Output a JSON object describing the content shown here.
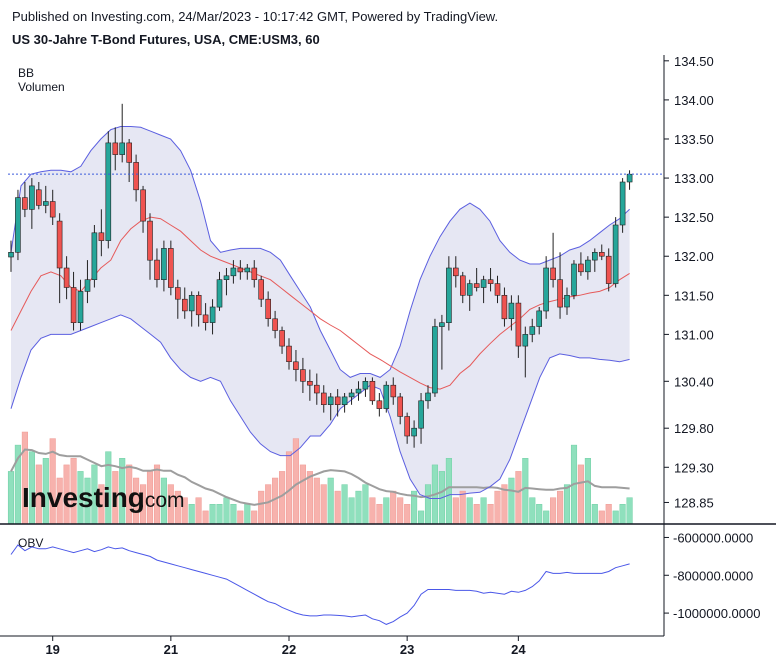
{
  "header": {
    "published": "Published on Investing.com, 24/Mar/2023 - 10:17:42 GMT, Powered by TradingView.",
    "instrument": "US 30-Jahre T-Bond Futures, USA, CME:USM3, 60"
  },
  "legend": {
    "bb": "BB",
    "volume": "Volumen",
    "obv": "OBV"
  },
  "watermark": {
    "brand": "Investing",
    "suffix": ".com"
  },
  "colors": {
    "up": "#26a69a",
    "down": "#ef5350",
    "vol_up": "#8fe0bd",
    "vol_down": "#f7b2ad",
    "bb_band": "#5b5fe0",
    "bb_fill": "#e6e7f3",
    "bb_mid": "#e65a5a",
    "vol_ma": "#9e9e9e",
    "obv": "#4a57e8",
    "last_price": "#3b5bdb"
  },
  "chart_data": [
    {
      "type": "candlestick",
      "title": "US 30-Jahre T-Bond Futures, USA, CME:USM3, 60",
      "price_ticks": [
        "134.50",
        "134.00",
        "133.50",
        "133.00",
        "132.50",
        "132.00",
        "131.50",
        "131.00",
        "130.40",
        "129.80",
        "129.30",
        "128.85"
      ],
      "x_ticks": [
        {
          "label": "19",
          "i": 6
        },
        {
          "label": "21",
          "i": 23
        },
        {
          "label": "22",
          "i": 40
        },
        {
          "label": "23",
          "i": 57
        },
        {
          "label": "24",
          "i": 73
        }
      ],
      "ylim": [
        128.6,
        134.6
      ],
      "last_price": 133.05,
      "ohlc": [
        [
          131.99,
          132.2,
          131.8,
          132.05
        ],
        [
          132.05,
          132.85,
          131.95,
          132.75
        ],
        [
          132.75,
          132.95,
          132.5,
          132.6
        ],
        [
          132.6,
          133.0,
          132.35,
          132.9
        ],
        [
          132.85,
          132.95,
          132.6,
          132.65
        ],
        [
          132.65,
          132.9,
          132.55,
          132.7
        ],
        [
          132.7,
          132.85,
          132.4,
          132.5
        ],
        [
          132.45,
          132.55,
          131.4,
          131.85
        ],
        [
          131.85,
          132.0,
          131.45,
          131.6
        ],
        [
          131.6,
          131.8,
          131.05,
          131.15
        ],
        [
          131.15,
          131.7,
          131.05,
          131.55
        ],
        [
          131.55,
          131.95,
          131.4,
          131.7
        ],
        [
          131.7,
          132.4,
          131.6,
          132.3
        ],
        [
          132.3,
          132.6,
          132.0,
          132.2
        ],
        [
          132.2,
          133.6,
          132.1,
          133.45
        ],
        [
          133.45,
          133.65,
          133.1,
          133.3
        ],
        [
          133.3,
          133.95,
          133.2,
          133.45
        ],
        [
          133.45,
          133.5,
          132.95,
          133.2
        ],
        [
          133.2,
          133.3,
          132.7,
          132.85
        ],
        [
          132.85,
          132.9,
          132.3,
          132.45
        ],
        [
          132.45,
          132.55,
          131.7,
          131.95
        ],
        [
          131.95,
          132.1,
          131.6,
          131.7
        ],
        [
          131.7,
          132.2,
          131.55,
          132.1
        ],
        [
          132.1,
          132.2,
          131.5,
          131.6
        ],
        [
          131.6,
          131.7,
          131.2,
          131.45
        ],
        [
          131.45,
          131.6,
          131.2,
          131.3
        ],
        [
          131.3,
          131.55,
          131.1,
          131.5
        ],
        [
          131.5,
          131.55,
          131.1,
          131.25
        ],
        [
          131.25,
          131.4,
          131.05,
          131.15
        ],
        [
          131.15,
          131.45,
          131.0,
          131.35
        ],
        [
          131.35,
          131.8,
          131.3,
          131.7
        ],
        [
          131.7,
          131.85,
          131.5,
          131.75
        ],
        [
          131.75,
          131.95,
          131.65,
          131.85
        ],
        [
          131.85,
          131.95,
          131.7,
          131.8
        ],
        [
          131.8,
          131.9,
          131.7,
          131.85
        ],
        [
          131.85,
          131.95,
          131.6,
          131.7
        ],
        [
          131.7,
          131.75,
          131.35,
          131.45
        ],
        [
          131.45,
          131.55,
          131.1,
          131.2
        ],
        [
          131.2,
          131.3,
          130.95,
          131.05
        ],
        [
          131.05,
          131.1,
          130.75,
          130.85
        ],
        [
          130.85,
          130.95,
          130.55,
          130.65
        ],
        [
          130.65,
          130.8,
          130.4,
          130.55
        ],
        [
          130.55,
          130.7,
          130.25,
          130.4
        ],
        [
          130.4,
          130.55,
          130.15,
          130.35
        ],
        [
          130.35,
          130.5,
          130.1,
          130.25
        ],
        [
          130.25,
          130.35,
          130.0,
          130.1
        ],
        [
          130.1,
          130.25,
          129.9,
          130.2
        ],
        [
          130.2,
          130.3,
          129.95,
          130.1
        ],
        [
          130.1,
          130.25,
          130.0,
          130.2
        ],
        [
          130.2,
          130.3,
          130.1,
          130.25
        ],
        [
          130.25,
          130.4,
          130.15,
          130.3
        ],
        [
          130.3,
          130.45,
          130.2,
          130.4
        ],
        [
          130.4,
          130.45,
          130.1,
          130.15
        ],
        [
          130.15,
          130.25,
          129.95,
          130.05
        ],
        [
          130.05,
          130.4,
          130.0,
          130.35
        ],
        [
          130.35,
          130.45,
          130.1,
          130.2
        ],
        [
          130.2,
          130.25,
          129.85,
          129.95
        ],
        [
          129.95,
          130.0,
          129.6,
          129.7
        ],
        [
          129.7,
          129.9,
          129.55,
          129.8
        ],
        [
          129.8,
          130.25,
          129.6,
          130.15
        ],
        [
          130.15,
          130.35,
          130.05,
          130.25
        ],
        [
          130.25,
          131.2,
          130.2,
          131.1
        ],
        [
          131.1,
          131.25,
          130.55,
          131.15
        ],
        [
          131.15,
          132.0,
          131.05,
          131.85
        ],
        [
          131.85,
          132.0,
          131.6,
          131.75
        ],
        [
          131.75,
          131.8,
          131.4,
          131.5
        ],
        [
          131.5,
          131.7,
          131.3,
          131.65
        ],
        [
          131.65,
          131.85,
          131.55,
          131.6
        ],
        [
          131.6,
          131.75,
          131.4,
          131.7
        ],
        [
          131.7,
          131.85,
          131.55,
          131.65
        ],
        [
          131.65,
          131.75,
          131.4,
          131.5
        ],
        [
          131.5,
          131.6,
          131.1,
          131.2
        ],
        [
          131.2,
          131.5,
          131.05,
          131.4
        ],
        [
          131.4,
          131.5,
          130.7,
          130.85
        ],
        [
          130.85,
          131.1,
          130.45,
          131.0
        ],
        [
          131.0,
          131.2,
          130.9,
          131.1
        ],
        [
          131.1,
          131.35,
          131.0,
          131.3
        ],
        [
          131.3,
          132.0,
          131.2,
          131.85
        ],
        [
          131.85,
          132.3,
          131.6,
          131.7
        ],
        [
          131.7,
          132.05,
          131.2,
          131.35
        ],
        [
          131.35,
          131.6,
          131.25,
          131.5
        ],
        [
          131.5,
          131.95,
          131.45,
          131.9
        ],
        [
          131.9,
          132.05,
          131.75,
          131.8
        ],
        [
          131.8,
          132.0,
          131.7,
          131.95
        ],
        [
          131.95,
          132.1,
          131.8,
          132.05
        ],
        [
          132.05,
          132.15,
          131.95,
          132.0
        ],
        [
          132.0,
          132.1,
          131.55,
          131.65
        ],
        [
          131.65,
          132.5,
          131.6,
          132.4
        ],
        [
          132.4,
          133.0,
          132.3,
          132.95
        ],
        [
          132.95,
          133.1,
          132.85,
          133.05
        ]
      ],
      "bb_upper": [
        132.05,
        132.9,
        133.05,
        133.08,
        133.1,
        133.1,
        133.08,
        133.15,
        133.35,
        133.5,
        133.62,
        133.66,
        133.66,
        133.65,
        133.6,
        133.55,
        133.5,
        133.35,
        133.1,
        132.7,
        132.2,
        132.05,
        132.08,
        132.1,
        132.1,
        132.1,
        132.05,
        131.95,
        131.75,
        131.55,
        131.35,
        131.05,
        130.8,
        130.55,
        130.45,
        130.5,
        130.5,
        130.45,
        130.55,
        130.85,
        131.3,
        131.7,
        132.0,
        132.25,
        132.45,
        132.6,
        132.68,
        132.6,
        132.45,
        132.2,
        132.05,
        131.95,
        131.9,
        131.9,
        131.95,
        132.0,
        132.08,
        132.12,
        132.2,
        132.3,
        132.4,
        132.48,
        132.6
      ],
      "bb_lower": [
        130.05,
        130.45,
        130.8,
        130.95,
        131.0,
        131.0,
        131.0,
        131.05,
        131.1,
        131.15,
        131.2,
        131.25,
        131.2,
        131.1,
        131.0,
        130.9,
        130.7,
        130.55,
        130.45,
        130.4,
        130.45,
        130.4,
        130.15,
        129.95,
        129.75,
        129.6,
        129.5,
        129.45,
        129.45,
        129.55,
        129.7,
        129.7,
        129.85,
        130.05,
        130.15,
        130.25,
        130.35,
        130.3,
        129.95,
        129.5,
        129.15,
        128.95,
        128.9,
        128.9,
        128.95,
        128.95,
        128.97,
        128.98,
        129.05,
        129.15,
        129.4,
        129.75,
        130.1,
        130.45,
        130.7,
        130.75,
        130.73,
        130.7,
        130.7,
        130.68,
        130.67,
        130.65,
        130.68
      ],
      "bb_mid": [
        131.05,
        131.3,
        131.55,
        131.75,
        131.8,
        131.75,
        131.6,
        131.55,
        131.7,
        131.85,
        131.95,
        132.2,
        132.35,
        132.45,
        132.5,
        132.48,
        132.4,
        132.32,
        132.2,
        132.08,
        132.0,
        131.95,
        131.9,
        131.85,
        131.8,
        131.75,
        131.7,
        131.6,
        131.5,
        131.4,
        131.3,
        131.2,
        131.12,
        131.05,
        130.95,
        130.85,
        130.75,
        130.68,
        130.6,
        130.52,
        130.45,
        130.38,
        130.32,
        130.3,
        130.35,
        130.5,
        130.6,
        130.75,
        130.88,
        131.0,
        131.1,
        131.2,
        131.32,
        131.38,
        131.42,
        131.45,
        131.48,
        131.5,
        131.53,
        131.55,
        131.6,
        131.7,
        131.78
      ],
      "volume": [
        8,
        12,
        14,
        11,
        9,
        10,
        13,
        7,
        9,
        10,
        8,
        7,
        9,
        6,
        11,
        8,
        10,
        9,
        7,
        6,
        8,
        9,
        7,
        6,
        5,
        4,
        3,
        4,
        2,
        3,
        3,
        4,
        3,
        2,
        3,
        2,
        5,
        6,
        7,
        8,
        11,
        13,
        9,
        8,
        7,
        6,
        7,
        5,
        6,
        4,
        5,
        6,
        4,
        3,
        4,
        5,
        4,
        3,
        5,
        2,
        6,
        9,
        8,
        10,
        4,
        5,
        4,
        3,
        4,
        3,
        5,
        6,
        7,
        8,
        10,
        4,
        3,
        2,
        4,
        5,
        6,
        12,
        9,
        10,
        3,
        2,
        3,
        2,
        3,
        4
      ],
      "obv": [
        -690000,
        -640000,
        -670000,
        -650000,
        -660000,
        -660000,
        -650000,
        -660000,
        -670000,
        -680000,
        -670000,
        -660000,
        -675000,
        -665000,
        -650000,
        -660000,
        -655000,
        -670000,
        -680000,
        -690000,
        -700000,
        -720000,
        -730000,
        -740000,
        -750000,
        -760000,
        -770000,
        -780000,
        -790000,
        -800000,
        -810000,
        -820000,
        -840000,
        -860000,
        -880000,
        -900000,
        -920000,
        -940000,
        -950000,
        -970000,
        -985000,
        -1000000,
        -1010000,
        -1015000,
        -1015000,
        -1010000,
        -1010000,
        -1012000,
        -1015000,
        -1020000,
        -1015000,
        -1010000,
        -1030000,
        -1040000,
        -1060000,
        -1045000,
        -1020000,
        -1000000,
        -960000,
        -900000,
        -875000,
        -875000,
        -875000,
        -875000,
        -880000,
        -880000,
        -880000,
        -885000,
        -895000,
        -890000,
        -895000,
        -900000,
        -885000,
        -890000,
        -880000,
        -860000,
        -830000,
        -780000,
        -790000,
        -790000,
        -785000,
        -790000,
        -790000,
        -790000,
        -790000,
        -790000,
        -780000,
        -760000,
        -750000,
        -740000
      ],
      "obv_ticks": [
        "-600000.0000",
        "-800000.0000",
        "-1000000.0000"
      ]
    }
  ]
}
